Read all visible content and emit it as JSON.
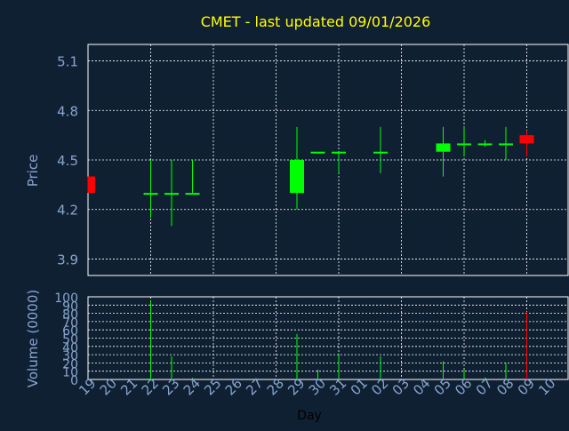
{
  "chart_data": [
    {
      "type": "candlestick",
      "title": "CMET - last updated 09/01/2026",
      "ylabel": "Price",
      "ylim": [
        3.8,
        5.2
      ],
      "yticks": [
        "3.9",
        "4.2",
        "4.5",
        "4.8",
        "5.1"
      ],
      "grid": true,
      "colors": {
        "up": "#00ff00",
        "down": "#ff0000",
        "title": "#ffff00",
        "axis_text": "#87a5cf",
        "background": "#102033",
        "grid": "#ffffff"
      },
      "candles": [
        {
          "day": "19",
          "open": 4.4,
          "high": 4.4,
          "low": 4.3,
          "close": 4.3
        },
        {
          "day": "22",
          "open": 4.3,
          "high": 4.5,
          "low": 4.15,
          "close": 4.3
        },
        {
          "day": "23",
          "open": 4.3,
          "high": 4.5,
          "low": 4.1,
          "close": 4.3
        },
        {
          "day": "24",
          "open": 4.3,
          "high": 4.5,
          "low": 4.3,
          "close": 4.3
        },
        {
          "day": "29",
          "open": 4.3,
          "high": 4.7,
          "low": 4.2,
          "close": 4.5
        },
        {
          "day": "30",
          "open": 4.55,
          "high": 4.55,
          "low": 4.55,
          "close": 4.55
        },
        {
          "day": "31",
          "open": 4.55,
          "high": 4.55,
          "low": 4.42,
          "close": 4.55
        },
        {
          "day": "02",
          "open": 4.55,
          "high": 4.7,
          "low": 4.42,
          "close": 4.55
        },
        {
          "day": "05",
          "open": 4.55,
          "high": 4.7,
          "low": 4.4,
          "close": 4.6
        },
        {
          "day": "06",
          "open": 4.6,
          "high": 4.7,
          "low": 4.52,
          "close": 4.6
        },
        {
          "day": "07",
          "open": 4.6,
          "high": 4.62,
          "low": 4.58,
          "close": 4.6
        },
        {
          "day": "08",
          "open": 4.6,
          "high": 4.7,
          "low": 4.5,
          "close": 4.6
        },
        {
          "day": "09",
          "open": 4.65,
          "high": 4.68,
          "low": 4.52,
          "close": 4.6
        }
      ]
    },
    {
      "type": "bar",
      "ylabel": "Volume (0000)",
      "xlabel": "Day",
      "ylim": [
        0,
        100
      ],
      "yticks": [
        "0",
        "10",
        "20",
        "30",
        "40",
        "50",
        "60",
        "70",
        "80",
        "90",
        "100"
      ],
      "categories": [
        "19",
        "20",
        "21",
        "22",
        "23",
        "24",
        "25",
        "26",
        "27",
        "28",
        "29",
        "30",
        "31",
        "01",
        "02",
        "03",
        "04",
        "05",
        "06",
        "07",
        "08",
        "09",
        "10"
      ],
      "bars": [
        {
          "day": "19",
          "value": 0,
          "direction": "down"
        },
        {
          "day": "22",
          "value": 95,
          "direction": "up"
        },
        {
          "day": "23",
          "value": 28,
          "direction": "up"
        },
        {
          "day": "24",
          "value": 2,
          "direction": "up"
        },
        {
          "day": "29",
          "value": 55,
          "direction": "up"
        },
        {
          "day": "30",
          "value": 12,
          "direction": "up"
        },
        {
          "day": "31",
          "value": 30,
          "direction": "up"
        },
        {
          "day": "02",
          "value": 28,
          "direction": "up"
        },
        {
          "day": "05",
          "value": 22,
          "direction": "up"
        },
        {
          "day": "06",
          "value": 12,
          "direction": "up"
        },
        {
          "day": "07",
          "value": 2,
          "direction": "up"
        },
        {
          "day": "08",
          "value": 20,
          "direction": "up"
        },
        {
          "day": "09",
          "value": 82,
          "direction": "down"
        }
      ]
    }
  ]
}
